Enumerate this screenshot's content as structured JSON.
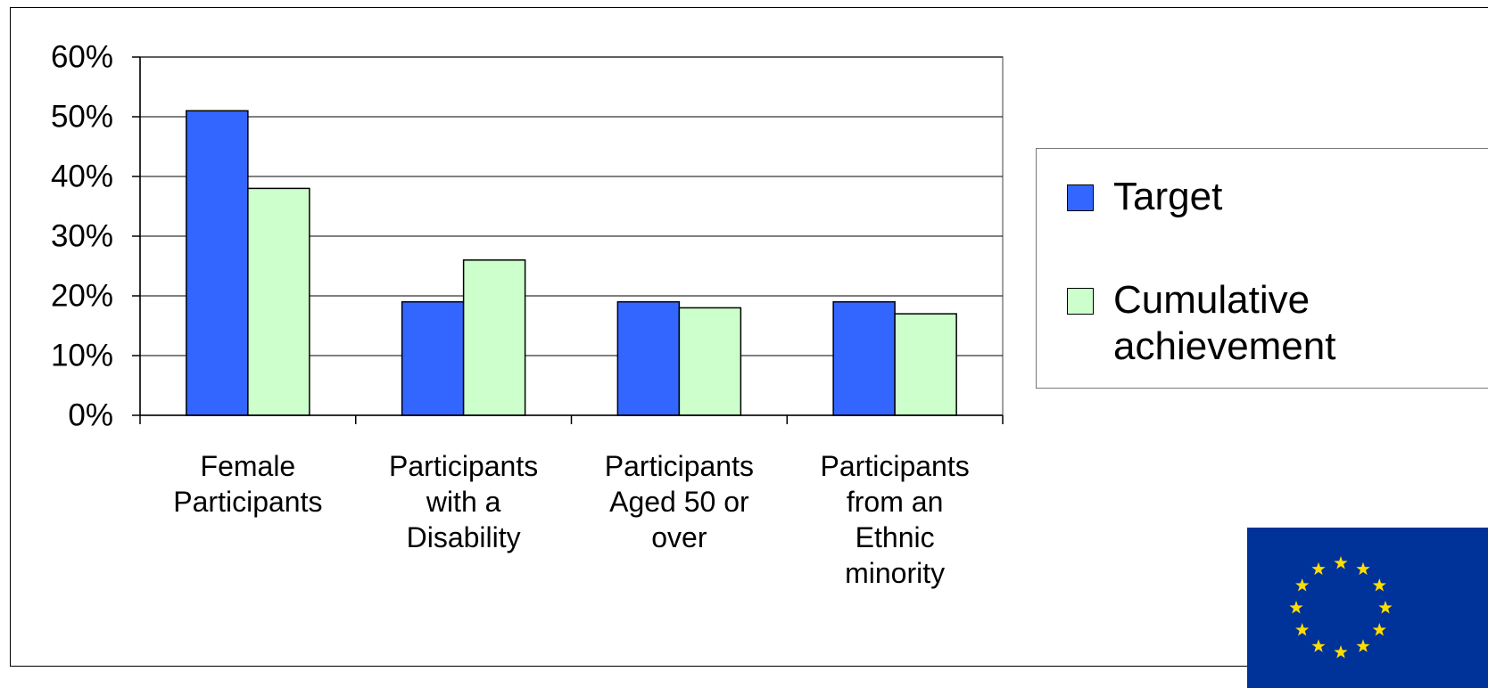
{
  "chart_data": {
    "type": "bar",
    "categories": [
      "Female\nParticipants",
      "Participants\nwith a\nDisability",
      "Participants\nAged 50 or\nover",
      "Participants\nfrom an\nEthnic\nminority"
    ],
    "series": [
      {
        "name": "Target",
        "values": [
          51,
          19,
          19,
          19
        ],
        "color": "#3366FF"
      },
      {
        "name": "Cumulative achievement",
        "values": [
          38,
          26,
          18,
          17
        ],
        "color": "#CCFFCC"
      }
    ],
    "y_ticks": [
      "0%",
      "10%",
      "20%",
      "30%",
      "40%",
      "50%",
      "60%"
    ],
    "ylim": [
      0,
      60
    ],
    "grid": true,
    "legend_position": "right",
    "title": "",
    "xlabel": "",
    "ylabel": ""
  },
  "legend": {
    "target_label": "Target",
    "cumulative_label": "Cumulative\nachievement"
  },
  "logo": {
    "type": "eu-flag",
    "background": "#003399",
    "star_color": "#FFDD00"
  }
}
